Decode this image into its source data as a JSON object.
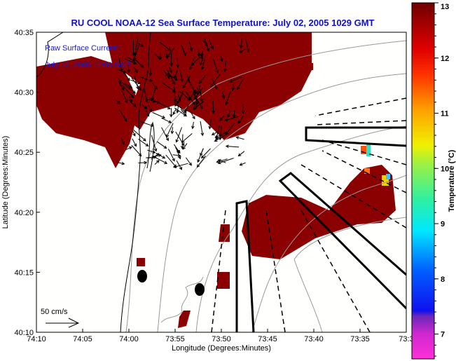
{
  "chart_data": {
    "type": "heatmap",
    "title": "RU COOL  NOAA-12  Sea Surface Temperature:  July 02, 2005 1029 GMT",
    "xlabel": "Longitude (Degrees:Minutes)",
    "ylabel": "Latitude (Degrees:Minutes)",
    "x_ticks": [
      "74:10",
      "74:05",
      "74:00",
      "73:55",
      "73:50",
      "73:45",
      "73:40",
      "73:35",
      "73:3"
    ],
    "y_ticks": [
      "40:10",
      "40:15",
      "40:20",
      "40:25",
      "40:30",
      "40:35"
    ],
    "xlim_minutes_west": [
      610,
      570
    ],
    "ylim_minutes_north": [
      2410,
      2435
    ],
    "colorbar": {
      "label": "Temperature (°C)",
      "ticks": [
        "7",
        "8",
        "9",
        "10",
        "11",
        "12",
        "13"
      ],
      "range": [
        6.55,
        13
      ],
      "colors": [
        "#ff20d0",
        "#7020c0",
        "#1010ff",
        "#0090ff",
        "#00f0f0",
        "#40f0a0",
        "#c0f020",
        "#ffff00",
        "#ffa000",
        "#ff3000",
        "#e00000",
        "#800000"
      ]
    },
    "sst_color": "#8b0000",
    "annotations": {
      "current_label": "Raw Surface Current:",
      "current_time": "July 02, 2005 10:00 GMT",
      "scale_label": "50 cm/s"
    }
  }
}
